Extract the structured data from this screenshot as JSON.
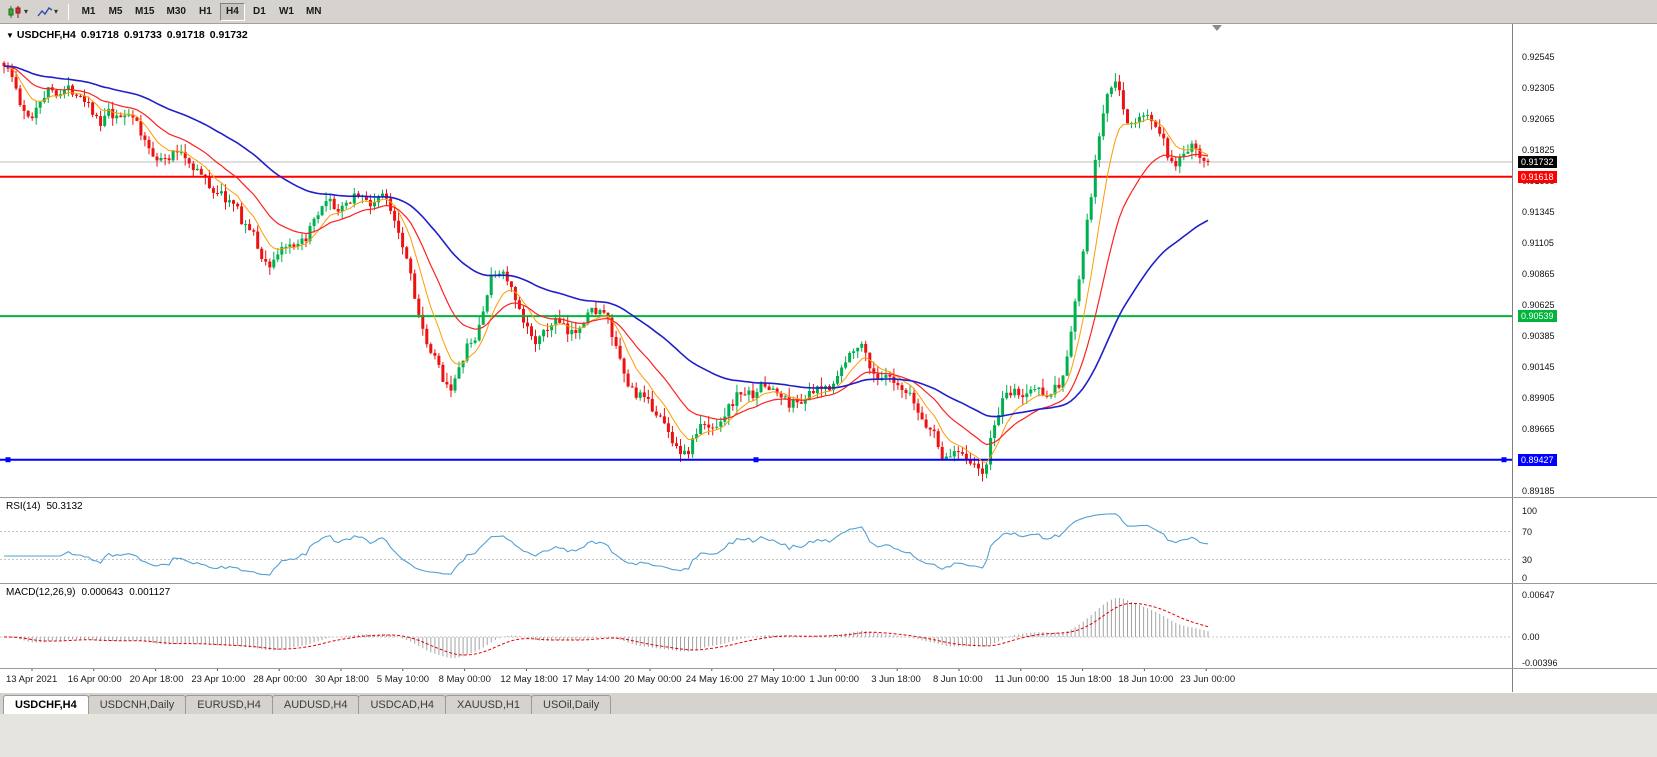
{
  "toolbar": {
    "icons": [
      {
        "name": "candlestick-chart-icon"
      },
      {
        "name": "line-chart-icon"
      },
      {
        "name": "chevron-down-icon",
        "glyph": "▾"
      }
    ],
    "timeframes": [
      "M1",
      "M5",
      "M15",
      "M30",
      "H1",
      "H4",
      "D1",
      "W1",
      "MN"
    ],
    "active_timeframe": "H4"
  },
  "chart": {
    "expand_arrow": "▼",
    "symbol_title": "USDCHF,H4",
    "ohlc": {
      "open": "0.91718",
      "high": "0.91733",
      "low": "0.91718",
      "close": "0.91732"
    }
  },
  "chart_data": {
    "type": "candlestick",
    "symbol": "USDCHF",
    "timeframe": "H4",
    "colors": {
      "up": "#00b050",
      "down": "#ee1111",
      "bid_line": "#bdbdbd",
      "level_dotted": "#c6c6c6",
      "macd_hist": "#a3a3a3",
      "macd_signal": "#e00000"
    },
    "y_axis": {
      "top_price": 0.92545,
      "tick_step": 0.0024,
      "ticks": [
        "0.92545",
        "0.92305",
        "0.92065",
        "0.91825",
        "0.91585",
        "0.91345",
        "0.91105",
        "0.90865",
        "0.90625",
        "0.90385",
        "0.90145",
        "0.89905",
        "0.89665",
        "0.89425",
        "0.89185"
      ]
    },
    "current_price": {
      "price": 0.91732,
      "label": "0.91732",
      "box_color": "#000000"
    },
    "h_lines": [
      {
        "price": 0.91618,
        "label": "0.91618",
        "color": "#ff0000",
        "handles": false
      },
      {
        "price": 0.90539,
        "label": "0.90539",
        "color": "#00b43c",
        "handles": false
      },
      {
        "price": 0.89427,
        "label": "0.89427",
        "color": "#0000ff",
        "handles": true
      }
    ],
    "moving_averages": [
      {
        "period": 8,
        "color": "#ff9c00",
        "width": 1
      },
      {
        "period": 20,
        "color": "#ff2020",
        "width": 1.2
      },
      {
        "period": 55,
        "color": "#2020c8",
        "width": 1.6
      }
    ],
    "price_path": [
      [
        4,
        0.925
      ],
      [
        14,
        0.9236
      ],
      [
        22,
        0.9212
      ],
      [
        30,
        0.9206
      ],
      [
        40,
        0.9222
      ],
      [
        50,
        0.923
      ],
      [
        60,
        0.9227
      ],
      [
        70,
        0.923
      ],
      [
        80,
        0.9226
      ],
      [
        90,
        0.9218
      ],
      [
        100,
        0.92
      ],
      [
        108,
        0.9212
      ],
      [
        116,
        0.9205
      ],
      [
        124,
        0.921
      ],
      [
        132,
        0.9212
      ],
      [
        140,
        0.9195
      ],
      [
        148,
        0.9185
      ],
      [
        156,
        0.9178
      ],
      [
        164,
        0.9174
      ],
      [
        172,
        0.9178
      ],
      [
        180,
        0.9183
      ],
      [
        188,
        0.9174
      ],
      [
        196,
        0.9168
      ],
      [
        204,
        0.916
      ],
      [
        212,
        0.9152
      ],
      [
        220,
        0.9149
      ],
      [
        228,
        0.9143
      ],
      [
        236,
        0.9138
      ],
      [
        244,
        0.9125
      ],
      [
        252,
        0.912
      ],
      [
        260,
        0.9102
      ],
      [
        268,
        0.9092
      ],
      [
        276,
        0.91
      ],
      [
        284,
        0.911
      ],
      [
        292,
        0.9104
      ],
      [
        300,
        0.9108
      ],
      [
        308,
        0.9118
      ],
      [
        316,
        0.9128
      ],
      [
        324,
        0.9139
      ],
      [
        332,
        0.9142
      ],
      [
        340,
        0.9133
      ],
      [
        348,
        0.9142
      ],
      [
        356,
        0.915
      ],
      [
        364,
        0.9145
      ],
      [
        370,
        0.9139
      ],
      [
        378,
        0.9147
      ],
      [
        386,
        0.9145
      ],
      [
        394,
        0.9132
      ],
      [
        402,
        0.9112
      ],
      [
        410,
        0.909
      ],
      [
        418,
        0.9058
      ],
      [
        426,
        0.903
      ],
      [
        434,
        0.9022
      ],
      [
        442,
        0.9008
      ],
      [
        450,
        0.8998
      ],
      [
        458,
        0.9008
      ],
      [
        466,
        0.903
      ],
      [
        474,
        0.9032
      ],
      [
        482,
        0.9055
      ],
      [
        490,
        0.908
      ],
      [
        498,
        0.909
      ],
      [
        506,
        0.9085
      ],
      [
        514,
        0.9068
      ],
      [
        522,
        0.905
      ],
      [
        530,
        0.9041
      ],
      [
        538,
        0.9034
      ],
      [
        546,
        0.9042
      ],
      [
        554,
        0.9051
      ],
      [
        562,
        0.9046
      ],
      [
        570,
        0.9038
      ],
      [
        578,
        0.9046
      ],
      [
        588,
        0.9056
      ],
      [
        598,
        0.906
      ],
      [
        608,
        0.905
      ],
      [
        618,
        0.9022
      ],
      [
        628,
        0.9
      ],
      [
        638,
        0.8993
      ],
      [
        648,
        0.8986
      ],
      [
        658,
        0.8979
      ],
      [
        668,
        0.8964
      ],
      [
        678,
        0.8952
      ],
      [
        686,
        0.8945
      ],
      [
        694,
        0.896
      ],
      [
        702,
        0.897
      ],
      [
        710,
        0.8966
      ],
      [
        718,
        0.8972
      ],
      [
        726,
        0.898
      ],
      [
        734,
        0.8989
      ],
      [
        742,
        0.8996
      ],
      [
        750,
        0.8992
      ],
      [
        758,
        0.8998
      ],
      [
        766,
        0.9
      ],
      [
        774,
        0.8996
      ],
      [
        782,
        0.8991
      ],
      [
        790,
        0.8986
      ],
      [
        798,
        0.8988
      ],
      [
        808,
        0.8992
      ],
      [
        818,
        0.8996
      ],
      [
        828,
        0.8999
      ],
      [
        838,
        0.9008
      ],
      [
        848,
        0.9021
      ],
      [
        856,
        0.9034
      ],
      [
        864,
        0.9028
      ],
      [
        872,
        0.9012
      ],
      [
        880,
        0.9003
      ],
      [
        888,
        0.9007
      ],
      [
        896,
        0.8998
      ],
      [
        904,
        0.8994
      ],
      [
        912,
        0.899
      ],
      [
        920,
        0.8976
      ],
      [
        928,
        0.8968
      ],
      [
        936,
        0.8961
      ],
      [
        944,
        0.894
      ],
      [
        952,
        0.8948
      ],
      [
        960,
        0.8952
      ],
      [
        968,
        0.8944
      ],
      [
        976,
        0.8936
      ],
      [
        984,
        0.8931
      ],
      [
        992,
        0.8962
      ],
      [
        1000,
        0.8984
      ],
      [
        1008,
        0.8992
      ],
      [
        1016,
        0.8996
      ],
      [
        1024,
        0.899
      ],
      [
        1032,
        0.8999
      ],
      [
        1040,
        0.8996
      ],
      [
        1048,
        0.8995
      ],
      [
        1056,
        0.8998
      ],
      [
        1062,
        0.9004
      ],
      [
        1068,
        0.9026
      ],
      [
        1074,
        0.9056
      ],
      [
        1080,
        0.9088
      ],
      [
        1086,
        0.9118
      ],
      [
        1092,
        0.9152
      ],
      [
        1098,
        0.9188
      ],
      [
        1104,
        0.9214
      ],
      [
        1110,
        0.923
      ],
      [
        1116,
        0.9234
      ],
      [
        1122,
        0.922
      ],
      [
        1128,
        0.9204
      ],
      [
        1134,
        0.9202
      ],
      [
        1140,
        0.9207
      ],
      [
        1146,
        0.921
      ],
      [
        1152,
        0.9206
      ],
      [
        1158,
        0.9197
      ],
      [
        1164,
        0.9188
      ],
      [
        1170,
        0.9172
      ],
      [
        1176,
        0.9166
      ],
      [
        1182,
        0.9178
      ],
      [
        1188,
        0.9183
      ],
      [
        1194,
        0.9184
      ],
      [
        1200,
        0.918
      ],
      [
        1208,
        0.9173
      ]
    ],
    "rsi": {
      "name": "RSI(14)",
      "value": "50.3132",
      "period": 14,
      "color": "#53a0d2",
      "levels": [
        "100",
        "70",
        "30",
        "0"
      ]
    },
    "macd": {
      "name": "MACD(12,26,9)",
      "value_macd": "0.000643",
      "value_signal": "0.001127",
      "fast": 12,
      "slow": 26,
      "signal": 9,
      "levels": [
        "0.00647",
        "0.00",
        "-0.00396"
      ]
    },
    "x_axis_labels": [
      "13 Apr 2021",
      "16 Apr 00:00",
      "20 Apr 18:00",
      "23 Apr 10:00",
      "28 Apr 00:00",
      "30 Apr 18:00",
      "5 May 10:00",
      "8 May 00:00",
      "12 May 18:00",
      "17 May 14:00",
      "20 May 00:00",
      "24 May 16:00",
      "27 May 10:00",
      "1 Jun 00:00",
      "3 Jun 18:00",
      "8 Jun 10:00",
      "11 Jun 00:00",
      "15 Jun 18:00",
      "18 Jun 10:00",
      "23 Jun 00:00"
    ]
  },
  "tabs": [
    {
      "label": "USDCHF,H4",
      "active": true
    },
    {
      "label": "USDCNH,Daily",
      "active": false
    },
    {
      "label": "EURUSD,H4",
      "active": false
    },
    {
      "label": "AUDUSD,H4",
      "active": false
    },
    {
      "label": "USDCAD,H4",
      "active": false
    },
    {
      "label": "XAUUSD,H1",
      "active": false
    },
    {
      "label": "USOil,Daily",
      "active": false
    }
  ]
}
